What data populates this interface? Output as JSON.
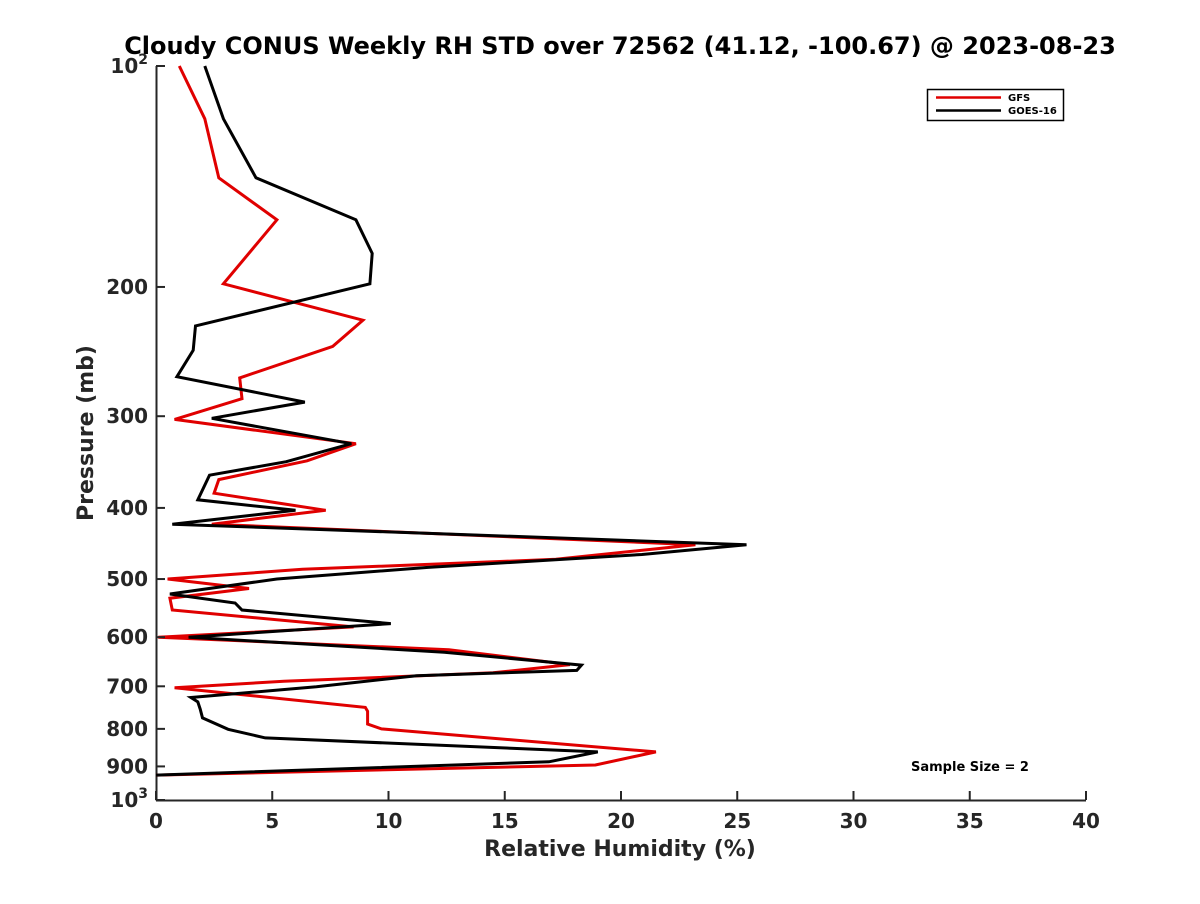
{
  "chart_data": {
    "type": "line",
    "title": "Cloudy CONUS Weekly RH STD over 72562 (41.12, -100.67) @ 2023-08-23",
    "xlabel": "Relative Humidity (%)",
    "ylabel": "Pressure (mb)",
    "xlim": [
      0,
      40
    ],
    "ylim": [
      1000,
      100
    ],
    "yscale": "log",
    "y_reversed": true,
    "x_ticks": [
      0,
      5,
      10,
      15,
      20,
      25,
      30,
      35,
      40
    ],
    "x_tick_labels": [
      "0",
      "5",
      "10",
      "15",
      "20",
      "25",
      "30",
      "35",
      "40"
    ],
    "y_ticks": [
      100,
      200,
      300,
      400,
      500,
      600,
      700,
      800,
      900,
      1000
    ],
    "y_tick_labels": [
      {
        "base": "10",
        "exp": "2"
      },
      {
        "base": "200",
        "exp": ""
      },
      {
        "base": "300",
        "exp": ""
      },
      {
        "base": "400",
        "exp": ""
      },
      {
        "base": "500",
        "exp": ""
      },
      {
        "base": "600",
        "exp": ""
      },
      {
        "base": "700",
        "exp": ""
      },
      {
        "base": "800",
        "exp": ""
      },
      {
        "base": "900",
        "exp": ""
      },
      {
        "base": "10",
        "exp": "3"
      }
    ],
    "grid": false,
    "legend_position": "top-right",
    "annotation": "Sample Size = 2",
    "series": [
      {
        "name": "GFS",
        "color": "#e00000",
        "points": [
          [
            1.0,
            100
          ],
          [
            2.1,
            118
          ],
          [
            2.7,
            142
          ],
          [
            5.2,
            162
          ],
          [
            2.9,
            198
          ],
          [
            8.9,
            222
          ],
          [
            7.6,
            241
          ],
          [
            3.6,
            266
          ],
          [
            3.7,
            284
          ],
          [
            0.8,
            303
          ],
          [
            8.6,
            327
          ],
          [
            6.5,
            345
          ],
          [
            2.7,
            366
          ],
          [
            2.5,
            382
          ],
          [
            7.3,
            403
          ],
          [
            2.4,
            421
          ],
          [
            23.2,
            449
          ],
          [
            17.2,
            470
          ],
          [
            6.3,
            485
          ],
          [
            0.5,
            500
          ],
          [
            4.0,
            515
          ],
          [
            0.6,
            531
          ],
          [
            0.7,
            551
          ],
          [
            8.5,
            581
          ],
          [
            0.1,
            600
          ],
          [
            12.6,
            624
          ],
          [
            17.8,
            654
          ],
          [
            14.5,
            671
          ],
          [
            5.5,
            689
          ],
          [
            0.8,
            703
          ],
          [
            9.0,
            748
          ],
          [
            9.1,
            757
          ],
          [
            9.1,
            788
          ],
          [
            9.7,
            800
          ],
          [
            21.5,
            860
          ],
          [
            18.9,
            896
          ],
          [
            0.0,
            925
          ]
        ]
      },
      {
        "name": "GOES-16",
        "color": "#000000",
        "points": [
          [
            2.1,
            100
          ],
          [
            2.9,
            118
          ],
          [
            4.3,
            142
          ],
          [
            8.6,
            162
          ],
          [
            9.3,
            180
          ],
          [
            9.2,
            198
          ],
          [
            1.7,
            226
          ],
          [
            1.6,
            244
          ],
          [
            0.9,
            265
          ],
          [
            6.4,
            287
          ],
          [
            2.4,
            302
          ],
          [
            8.4,
            327
          ],
          [
            5.6,
            346
          ],
          [
            2.3,
            361
          ],
          [
            1.8,
            390
          ],
          [
            6.0,
            403
          ],
          [
            0.7,
            421
          ],
          [
            25.4,
            449
          ],
          [
            20.9,
            463
          ],
          [
            11.7,
            482
          ],
          [
            5.2,
            500
          ],
          [
            0.6,
            524
          ],
          [
            3.4,
            539
          ],
          [
            3.7,
            551
          ],
          [
            10.1,
            575
          ],
          [
            1.4,
            600
          ],
          [
            12.4,
            629
          ],
          [
            18.3,
            655
          ],
          [
            18.1,
            666
          ],
          [
            11.2,
            677
          ],
          [
            6.9,
            701
          ],
          [
            1.5,
            725
          ],
          [
            1.8,
            735
          ],
          [
            1.9,
            752
          ],
          [
            2.0,
            773
          ],
          [
            3.1,
            801
          ],
          [
            4.7,
            823
          ],
          [
            19.0,
            860
          ],
          [
            16.9,
            887
          ],
          [
            0.0,
            925
          ]
        ]
      }
    ]
  }
}
